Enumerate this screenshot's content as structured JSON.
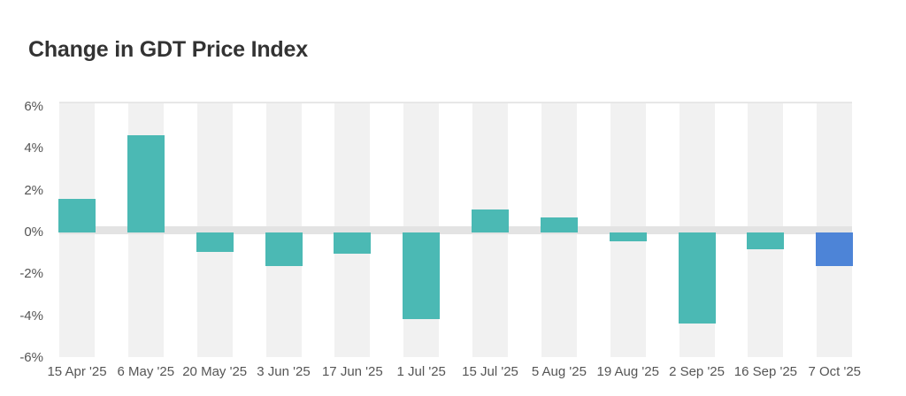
{
  "title": "Change in GDT Price Index",
  "chart_data": {
    "type": "bar",
    "title": "Change in GDT Price Index",
    "categories": [
      "15 Apr '25",
      "6 May '25",
      "20 May '25",
      "3 Jun '25",
      "17 Jun '25",
      "1 Jul '25",
      "15 Jul '25",
      "5 Aug '25",
      "19 Aug '25",
      "2 Sep '25",
      "16 Sep '25",
      "7 Oct '25"
    ],
    "values": [
      1.6,
      4.6,
      -0.9,
      -1.6,
      -1.0,
      -4.1,
      1.1,
      0.7,
      -0.4,
      -4.3,
      -0.8,
      -1.6
    ],
    "unit": "%",
    "xlabel": "",
    "ylabel": "",
    "ylim": [
      -6,
      6
    ],
    "ytick_labels": [
      "6%",
      "4%",
      "2%",
      "0%",
      "-2%",
      "-4%",
      "-6%"
    ],
    "legend": "none",
    "grid": "alternating vertical category bands with a thick horizontal zero band",
    "bar_colors": [
      "#4bb9b4",
      "#4bb9b4",
      "#4bb9b4",
      "#4bb9b4",
      "#4bb9b4",
      "#4bb9b4",
      "#4bb9b4",
      "#4bb9b4",
      "#4bb9b4",
      "#4bb9b4",
      "#4bb9b4",
      "#4d84d7"
    ],
    "colors": {
      "bar_default": "#4bb9b4",
      "bar_latest": "#4d84d7",
      "category_band": "#f1f1f1",
      "zero_band": "#e3e3e3",
      "plot_border": "#e7e7e7",
      "title_text": "#333333",
      "axis_text": "#555555",
      "background": "#ffffff"
    }
  }
}
